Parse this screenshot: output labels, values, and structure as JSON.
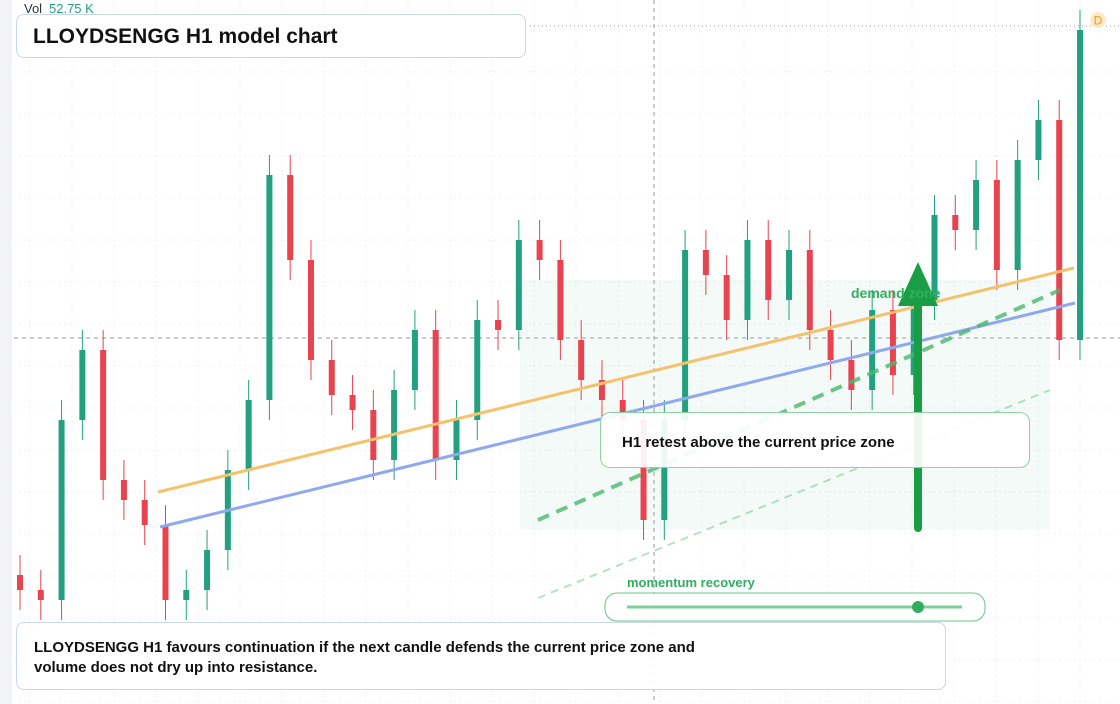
{
  "chart_data": {
    "type": "candlestick",
    "title": "LLOYDSENGG H1 model chart",
    "volume_label": "Vol",
    "volume_value": "52.75 K",
    "interval_badge": "D",
    "open": [
      25,
      22,
      20,
      56,
      70,
      44,
      40,
      35,
      20,
      22,
      30,
      46,
      60,
      105,
      88,
      68,
      61,
      58,
      48,
      62,
      74,
      48,
      56,
      76,
      74,
      92,
      88,
      72,
      64,
      60,
      56,
      36,
      56,
      90,
      85,
      76,
      92,
      80,
      90,
      74,
      68,
      62,
      78,
      65,
      80,
      97,
      94,
      104,
      86,
      108,
      116,
      72
    ],
    "high": [
      29,
      26,
      60,
      74,
      74,
      48,
      44,
      39,
      26,
      34,
      50,
      64,
      109,
      109,
      92,
      72,
      65,
      62,
      66,
      78,
      78,
      60,
      80,
      80,
      96,
      96,
      92,
      76,
      68,
      64,
      60,
      60,
      94,
      94,
      89,
      96,
      96,
      94,
      94,
      78,
      72,
      82,
      82,
      84,
      101,
      101,
      108,
      108,
      112,
      120,
      120,
      138
    ],
    "low": [
      18,
      16,
      16,
      52,
      40,
      36,
      31,
      16,
      16,
      18,
      26,
      42,
      56,
      84,
      64,
      57,
      54,
      44,
      44,
      58,
      44,
      44,
      52,
      70,
      70,
      84,
      68,
      60,
      56,
      52,
      32,
      32,
      52,
      81,
      72,
      72,
      76,
      76,
      70,
      64,
      58,
      58,
      61,
      61,
      76,
      90,
      90,
      82,
      82,
      104,
      68,
      68
    ],
    "close": [
      22,
      20,
      56,
      70,
      44,
      40,
      35,
      20,
      22,
      30,
      46,
      60,
      105,
      88,
      68,
      61,
      58,
      48,
      62,
      74,
      48,
      56,
      76,
      74,
      92,
      88,
      72,
      64,
      60,
      56,
      36,
      56,
      90,
      85,
      76,
      92,
      80,
      90,
      74,
      68,
      62,
      78,
      65,
      80,
      97,
      94,
      104,
      86,
      108,
      116,
      72,
      134
    ],
    "ylim": [
      0,
      140
    ],
    "up_color": "#22a07f",
    "down_color": "#e8434f",
    "annotations": {
      "demand": "demand zone",
      "retest": "H1 retest above the current price zone",
      "momentum": "momentum recovery",
      "caption": "LLOYDSENGG H1 favours continuation if the next candle defends the current price zone and volume does not dry up into resistance."
    }
  }
}
